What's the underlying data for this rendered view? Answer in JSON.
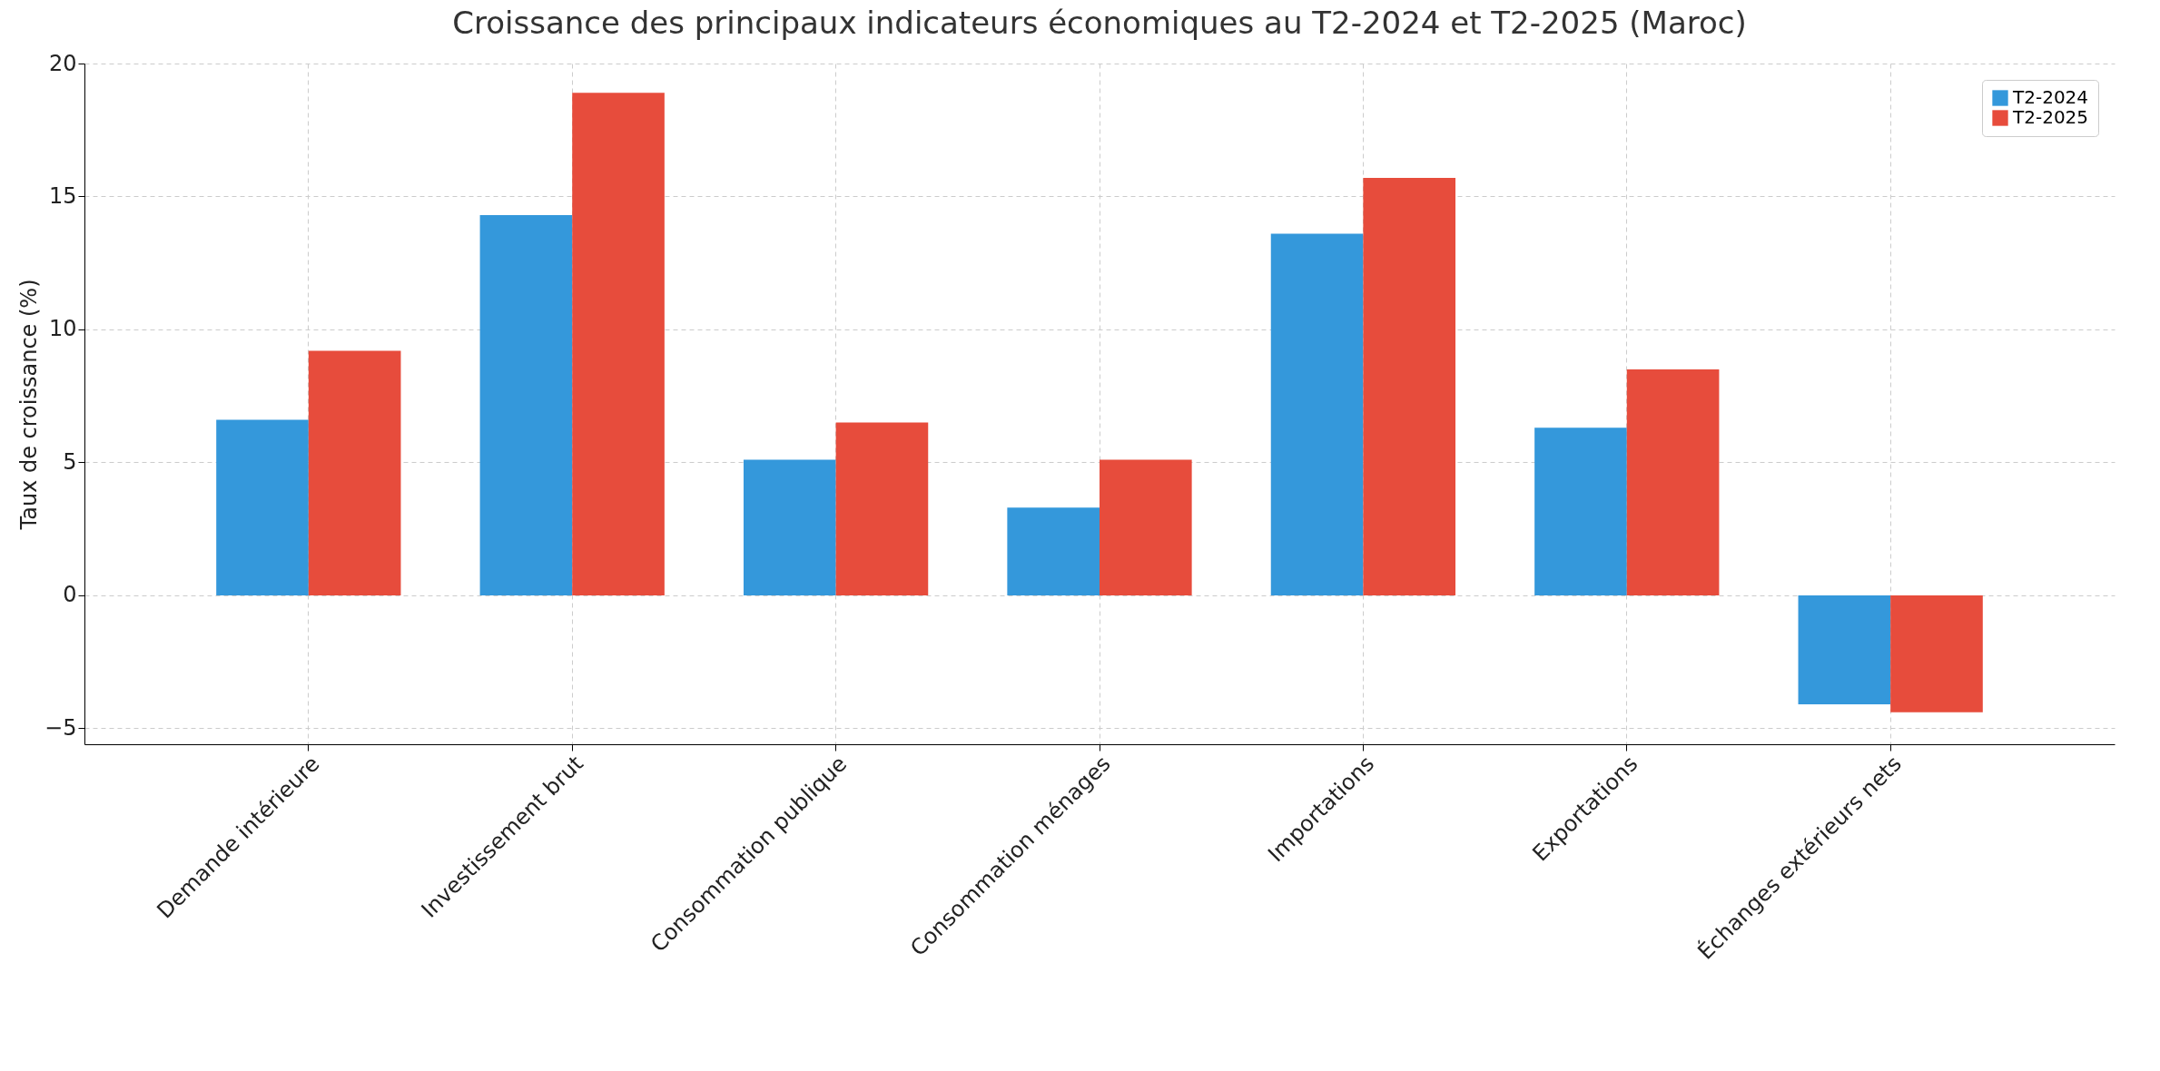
{
  "chart_data": {
    "type": "bar",
    "title": "Croissance des principaux indicateurs économiques au T2-2024 et T2-2025 (Maroc)",
    "ylabel": "Taux de croissance (%)",
    "categories": [
      "Demande intérieure",
      "Investissement brut",
      "Consommation publique",
      "Consommation ménages",
      "Importations",
      "Exportations",
      "Échanges extérieurs nets"
    ],
    "series": [
      {
        "name": "T2-2024",
        "color": "#3498db",
        "values": [
          6.6,
          14.3,
          5.1,
          3.3,
          13.6,
          6.3,
          -4.1
        ]
      },
      {
        "name": "T2-2025",
        "color": "#e74c3c",
        "values": [
          9.2,
          18.9,
          6.5,
          5.1,
          15.7,
          8.5,
          -4.4
        ]
      }
    ],
    "ylim": [
      -5.6,
      20
    ],
    "yticks": [
      -5,
      0,
      5,
      10,
      15,
      20
    ],
    "grid": true,
    "legend": "top right"
  }
}
